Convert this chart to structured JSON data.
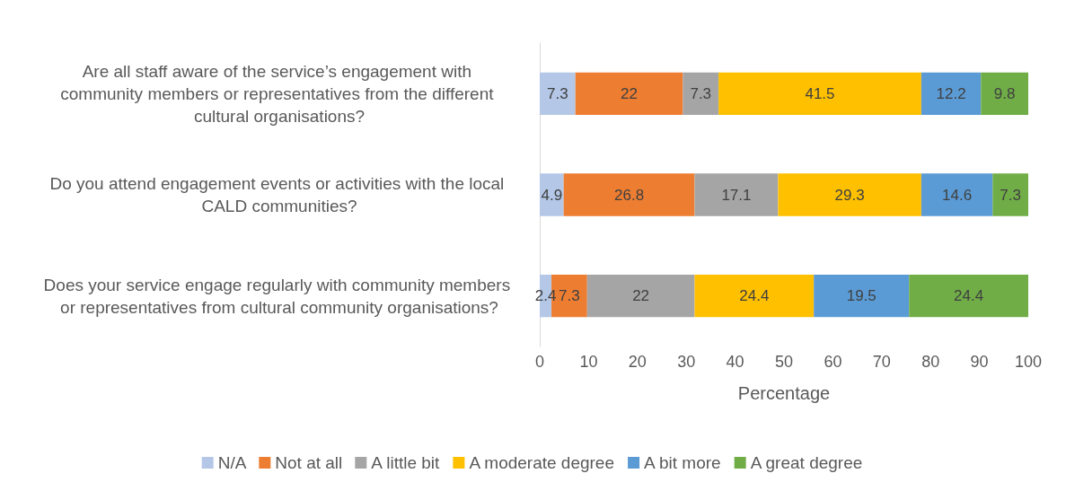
{
  "chart_data": {
    "type": "bar",
    "orientation": "horizontal",
    "stacked": true,
    "data_labels": true,
    "xlabel": "Percentage",
    "legend": "bottom",
    "grid": false,
    "categories": [
      "Are all staff aware of the service’s engagement with community members or representatives from the different cultural organisations?",
      "Do you attend engagement events or activities with the local CALD communities?",
      "Does your service engage regularly with community members or representatives from cultural community organisations?"
    ],
    "xlim": [
      0,
      100
    ],
    "xticks": [
      0,
      10,
      20,
      30,
      40,
      50,
      60,
      70,
      80,
      90,
      100
    ],
    "series": [
      {
        "name": "N/A",
        "color": "#b4c7e7",
        "values": [
          7.3,
          4.9,
          2.4
        ]
      },
      {
        "name": "Not at all",
        "color": "#ed7d31",
        "values": [
          22,
          26.8,
          7.3
        ]
      },
      {
        "name": "A little bit",
        "color": "#a5a5a5",
        "values": [
          7.3,
          17.1,
          22
        ]
      },
      {
        "name": "A moderate degree",
        "color": "#ffc000",
        "values": [
          41.5,
          29.3,
          24.4
        ]
      },
      {
        "name": "A bit more",
        "color": "#5b9bd5",
        "values": [
          12.2,
          14.6,
          19.5
        ]
      },
      {
        "name": "A great degree",
        "color": "#70ad47",
        "values": [
          9.8,
          7.3,
          24.4
        ]
      }
    ]
  }
}
